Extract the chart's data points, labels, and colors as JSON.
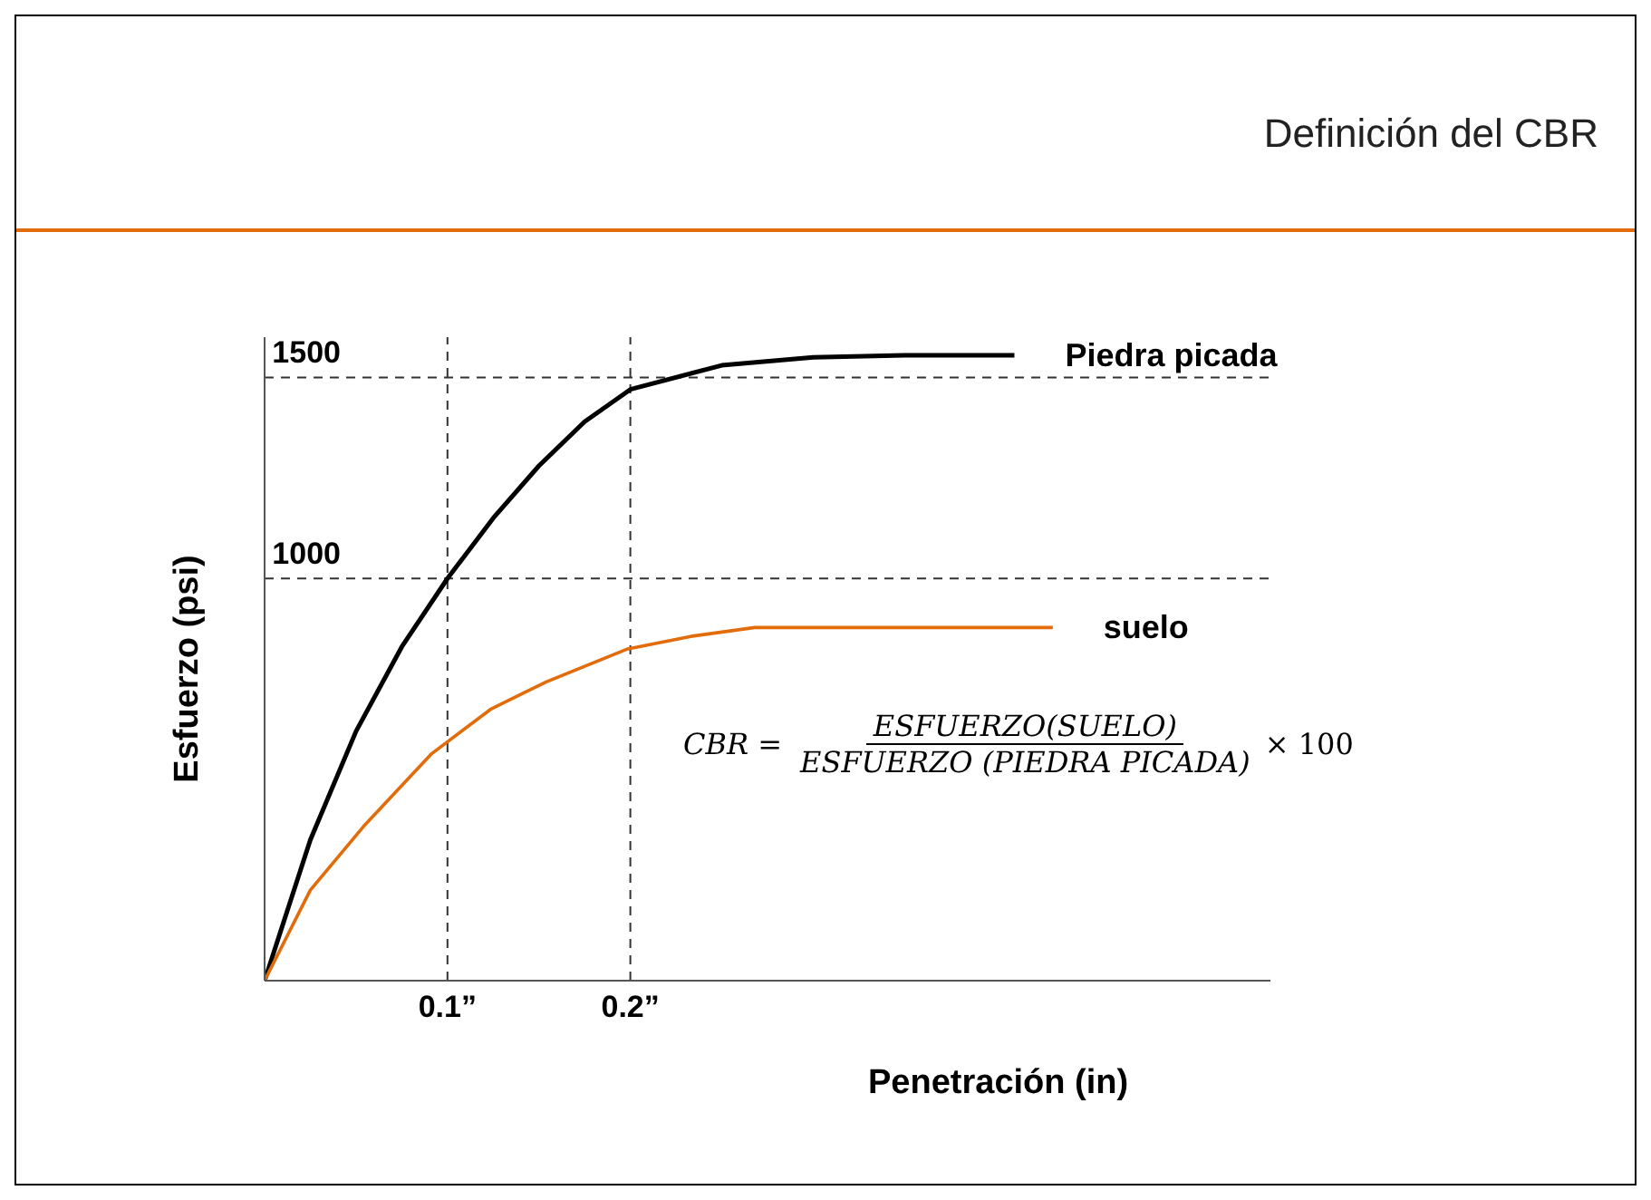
{
  "chart_data": {
    "type": "line",
    "title": "Definición del CBR",
    "xlabel": "Penetración (in)",
    "ylabel": "Esfuerzo (psi)",
    "xlim": [
      0,
      0.55
    ],
    "ylim": [
      0,
      1600
    ],
    "xticks": [
      {
        "value": 0.1,
        "label": "0.1”"
      },
      {
        "value": 0.2,
        "label": "0.2”"
      }
    ],
    "yticks": [
      1000,
      1500
    ],
    "grid": false,
    "legend": false,
    "marker": "none",
    "line_style": "solid",
    "ref_lines": [
      {
        "axis": "x",
        "value": 0.1,
        "line_style": "dashed",
        "color": "#333333"
      },
      {
        "axis": "x",
        "value": 0.2,
        "line_style": "dashed",
        "color": "#333333"
      },
      {
        "axis": "y",
        "value": 1000,
        "line_style": "dashed",
        "color": "#333333"
      },
      {
        "axis": "y",
        "value": 1500,
        "line_style": "dashed",
        "color": "#333333"
      }
    ],
    "annotations": [
      "CBR =",
      "ESFUERZO(SUELO)",
      "ESFUERZO (PIEDRA PICADA)",
      "× 100"
    ],
    "series": [
      {
        "name": "Piedra picada",
        "color": "#000000",
        "x": [
          0,
          0.025,
          0.05,
          0.075,
          0.1,
          0.125,
          0.15,
          0.175,
          0.2,
          0.25,
          0.3,
          0.35,
          0.41
        ],
        "values": [
          0,
          350,
          620,
          830,
          1000,
          1150,
          1280,
          1390,
          1470,
          1530,
          1550,
          1555,
          1555
        ]
      },
      {
        "name": "suelo",
        "color": "#e36c0a",
        "x": [
          0,
          0.025,
          0.054,
          0.091,
          0.124,
          0.154,
          0.198,
          0.233,
          0.268,
          0.431
        ],
        "values": [
          0,
          225,
          383,
          563,
          676,
          743,
          824,
          856,
          878,
          878
        ]
      }
    ]
  }
}
